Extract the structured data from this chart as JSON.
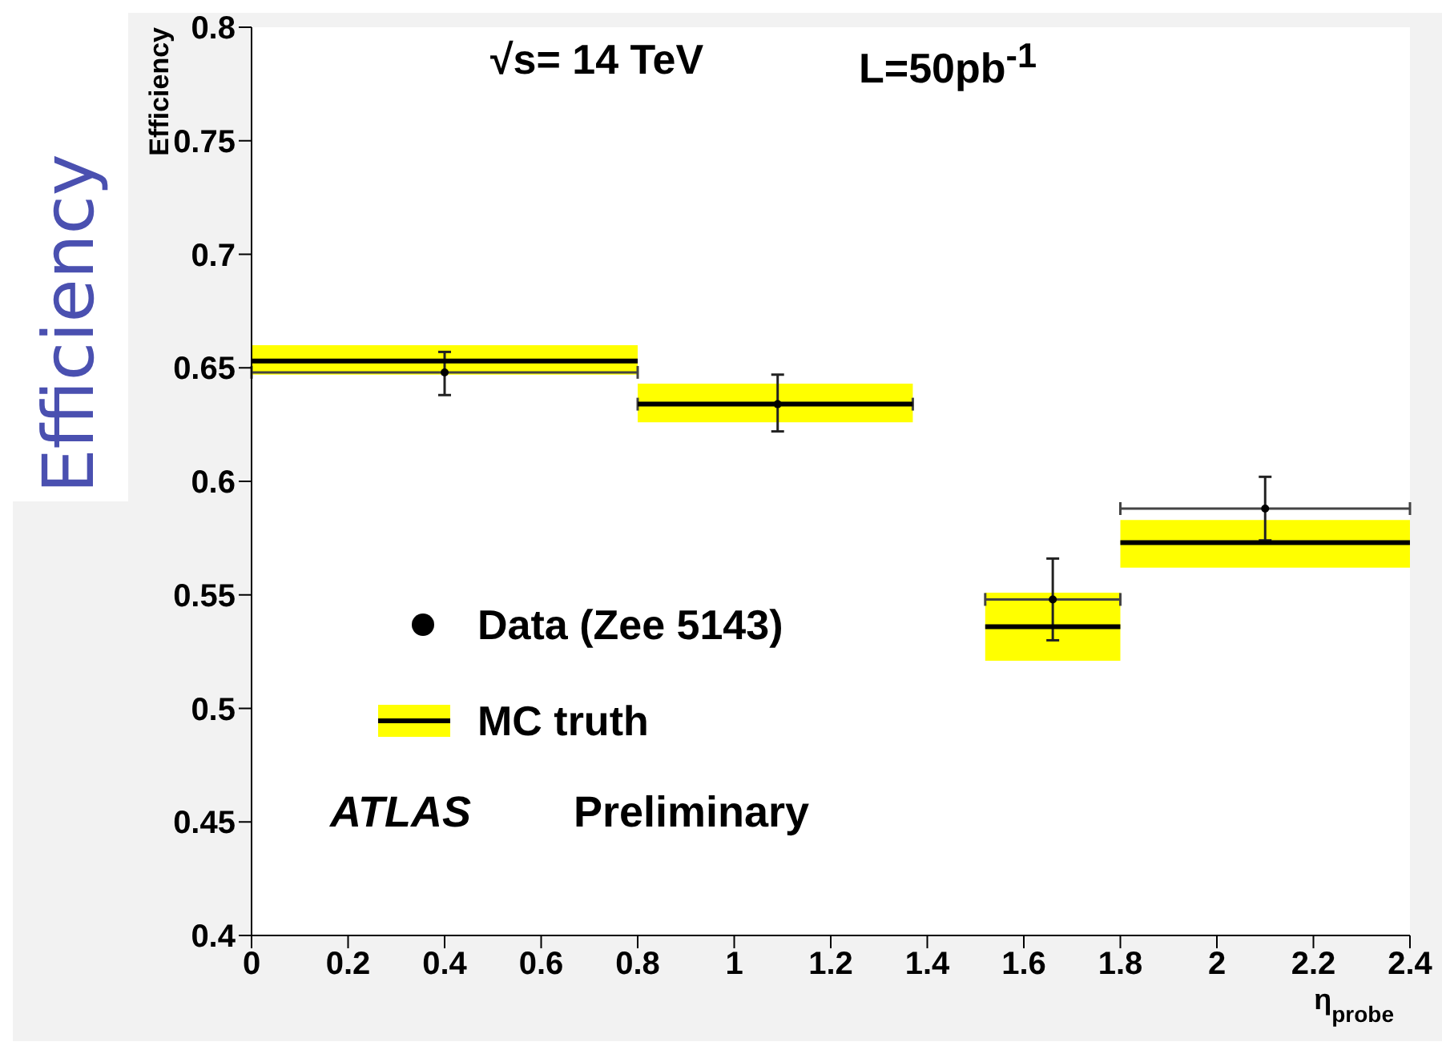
{
  "chart_data": {
    "type": "scatter",
    "ylabel": "Efficiency",
    "xlabel": "η$_{probe}$",
    "annotations": [
      "√s= 14 TeV",
      "L=50pb$^{-1}$",
      "ATLAS",
      "Preliminary",
      "Efficiency"
    ],
    "xlim": [
      0,
      2.4
    ],
    "xticks": [
      0,
      0.2,
      0.4,
      0.6,
      0.8,
      1,
      1.2,
      1.4,
      1.6,
      1.8,
      2,
      2.2,
      2.4
    ],
    "ylim": [
      0.4,
      0.8
    ],
    "yticks": [
      0.4,
      0.45,
      0.5,
      0.55,
      0.6,
      0.65,
      0.7,
      0.75,
      0.8
    ],
    "legend": "left",
    "series": [
      {
        "name": "Data (Zee 5143)",
        "marker": "circle",
        "color": "#000000",
        "x": [
          0.4,
          1.09,
          1.66,
          2.1
        ],
        "values": [
          0.648,
          0.634,
          0.548,
          0.588
        ],
        "xerrors": [
          [
            0,
            0.8
          ],
          [
            0.8,
            1.37
          ],
          [
            1.52,
            1.8
          ],
          [
            1.8,
            2.4
          ]
        ],
        "errors": [
          [
            0.638,
            0.657
          ],
          [
            0.622,
            0.647
          ],
          [
            0.53,
            0.566
          ],
          [
            0.574,
            0.602
          ]
        ]
      },
      {
        "name": "MC truth",
        "type": "line",
        "marker": "none",
        "color": "#000000",
        "x": [
          0,
          0.8
        ],
        "values": [
          0.653,
          0.653
        ],
        "lower": [
          0.647,
          0.647
        ],
        "upper": [
          0.66,
          0.66
        ]
      },
      {
        "type": "line",
        "marker": "none",
        "color": "#000000",
        "x": [
          0.8,
          1.37
        ],
        "values": [
          0.634,
          0.634
        ],
        "lower": [
          0.626,
          0.626
        ],
        "upper": [
          0.643,
          0.643
        ]
      },
      {
        "type": "line",
        "marker": "none",
        "color": "#000000",
        "x": [
          1.52,
          1.8
        ],
        "values": [
          0.536,
          0.536
        ],
        "lower": [
          0.521,
          0.521
        ],
        "upper": [
          0.551,
          0.551
        ]
      },
      {
        "type": "line",
        "marker": "none",
        "color": "#000000",
        "x": [
          1.8,
          2.4
        ],
        "values": [
          0.573,
          0.573
        ],
        "lower": [
          0.562,
          0.562
        ],
        "upper": [
          0.583,
          0.583
        ]
      }
    ]
  }
}
